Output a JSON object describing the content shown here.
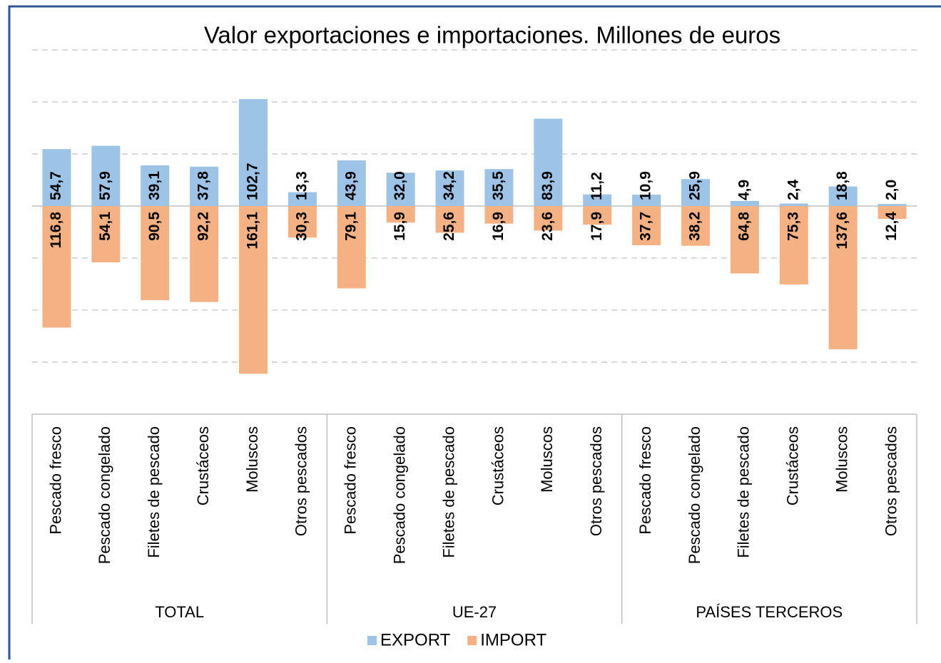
{
  "chart_data": {
    "type": "bar",
    "title": "Valor exportaciones e importaciones. Millones de euros",
    "groups": [
      "TOTAL",
      "UE-27",
      "PAÍSES TERCEROS"
    ],
    "categories": [
      "Pescado fresco",
      "Pescado congelado",
      "Filetes de pescado",
      "Crustáceos",
      "Moluscos",
      "Otros pescados",
      "Pescado fresco",
      "Pescado congelado",
      "Filetes de pescado",
      "Crustáceos",
      "Moluscos",
      "Otros pescados",
      "Pescado fresco",
      "Pescado congelado",
      "Filetes de pescado",
      "Crustáceos",
      "Moluscos",
      "Otros pescados"
    ],
    "series": [
      {
        "name": "EXPORT",
        "color": "#9dc3e6",
        "values": [
          54.7,
          57.9,
          39.1,
          37.8,
          102.7,
          13.3,
          43.9,
          32.0,
          34.2,
          35.5,
          83.9,
          11.2,
          10.9,
          25.9,
          4.9,
          2.4,
          18.8,
          2.0
        ],
        "value_labels": [
          "54,7",
          "57,9",
          "39,1",
          "37,8",
          "102,7",
          "13,3",
          "43,9",
          "32,0",
          "34,2",
          "35,5",
          "83,9",
          "11,2",
          "10,9",
          "25,9",
          "4,9",
          "2,4",
          "18,8",
          "2,0"
        ]
      },
      {
        "name": "IMPORT",
        "color": "#f4b183",
        "values": [
          -116.8,
          -54.1,
          -90.5,
          -92.2,
          -161.1,
          -30.3,
          -79.1,
          -15.9,
          -25.6,
          -16.9,
          -23.6,
          -17.9,
          -37.7,
          -38.2,
          -64.8,
          -75.3,
          -137.6,
          -12.4
        ],
        "value_labels": [
          "116,8",
          "54,1",
          "90,5",
          "92,2",
          "161,1",
          "30,3",
          "79,1",
          "15,9",
          "25,6",
          "16,9",
          "23,6",
          "17,9",
          "37,7",
          "38,2",
          "64,8",
          "75,3",
          "137,6",
          "12,4"
        ]
      }
    ],
    "ylim": [
      -200,
      150
    ],
    "yticks": [
      -150,
      -100,
      -50,
      0,
      50,
      100,
      150
    ],
    "grid": true,
    "legend": "bottom"
  }
}
